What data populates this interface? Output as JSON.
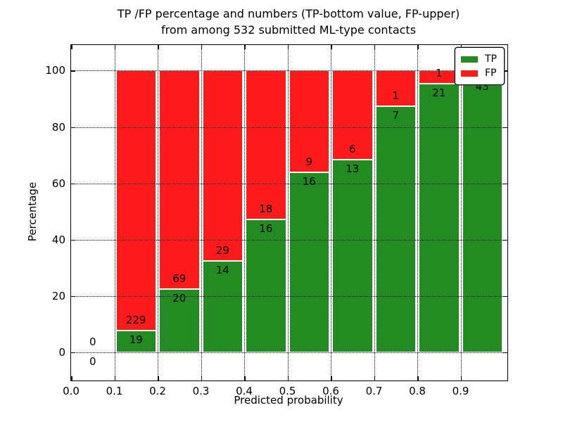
{
  "figure": {
    "title_line1": "TP /FP percentage and numbers (TP-bottom value, FP-upper)",
    "title_line2": "from among 532 submitted ML-type contacts"
  },
  "chart_data": {
    "type": "bar",
    "stacked": true,
    "title": "TP /FP percentage and numbers (TP-bottom value, FP-upper) from among 532 submitted ML-type contacts",
    "xlabel": "Predicted probability",
    "ylabel": "Percentage",
    "total_submitted": 532,
    "bin_starts": [
      0.0,
      0.1,
      0.2,
      0.3,
      0.4,
      0.5,
      0.6,
      0.7,
      0.8,
      0.9
    ],
    "bin_width": 0.1,
    "series": [
      {
        "name": "TP",
        "color": "#228b22",
        "counts": [
          0,
          19,
          20,
          14,
          16,
          16,
          13,
          7,
          21,
          43
        ]
      },
      {
        "name": "FP",
        "color": "#fc1a1a",
        "counts": [
          0,
          229,
          69,
          29,
          18,
          9,
          6,
          1,
          1,
          1
        ]
      }
    ],
    "tp_percent_of_bin": [
      0,
      7.66,
      22.47,
      32.56,
      47.06,
      64.0,
      68.42,
      87.5,
      95.45,
      97.73
    ],
    "stack_total_percent": 100,
    "x_ticks": [
      0.0,
      0.1,
      0.2,
      0.3,
      0.4,
      0.5,
      0.6,
      0.7,
      0.8,
      0.9
    ],
    "y_ticks": [
      0,
      20,
      40,
      60,
      80,
      100
    ],
    "xlim": [
      0,
      1.008
    ],
    "ylim": [
      -10,
      109.1
    ],
    "grid_style": "dotted",
    "legend": {
      "position": "upper right",
      "entries": [
        "TP",
        "FP"
      ]
    }
  }
}
